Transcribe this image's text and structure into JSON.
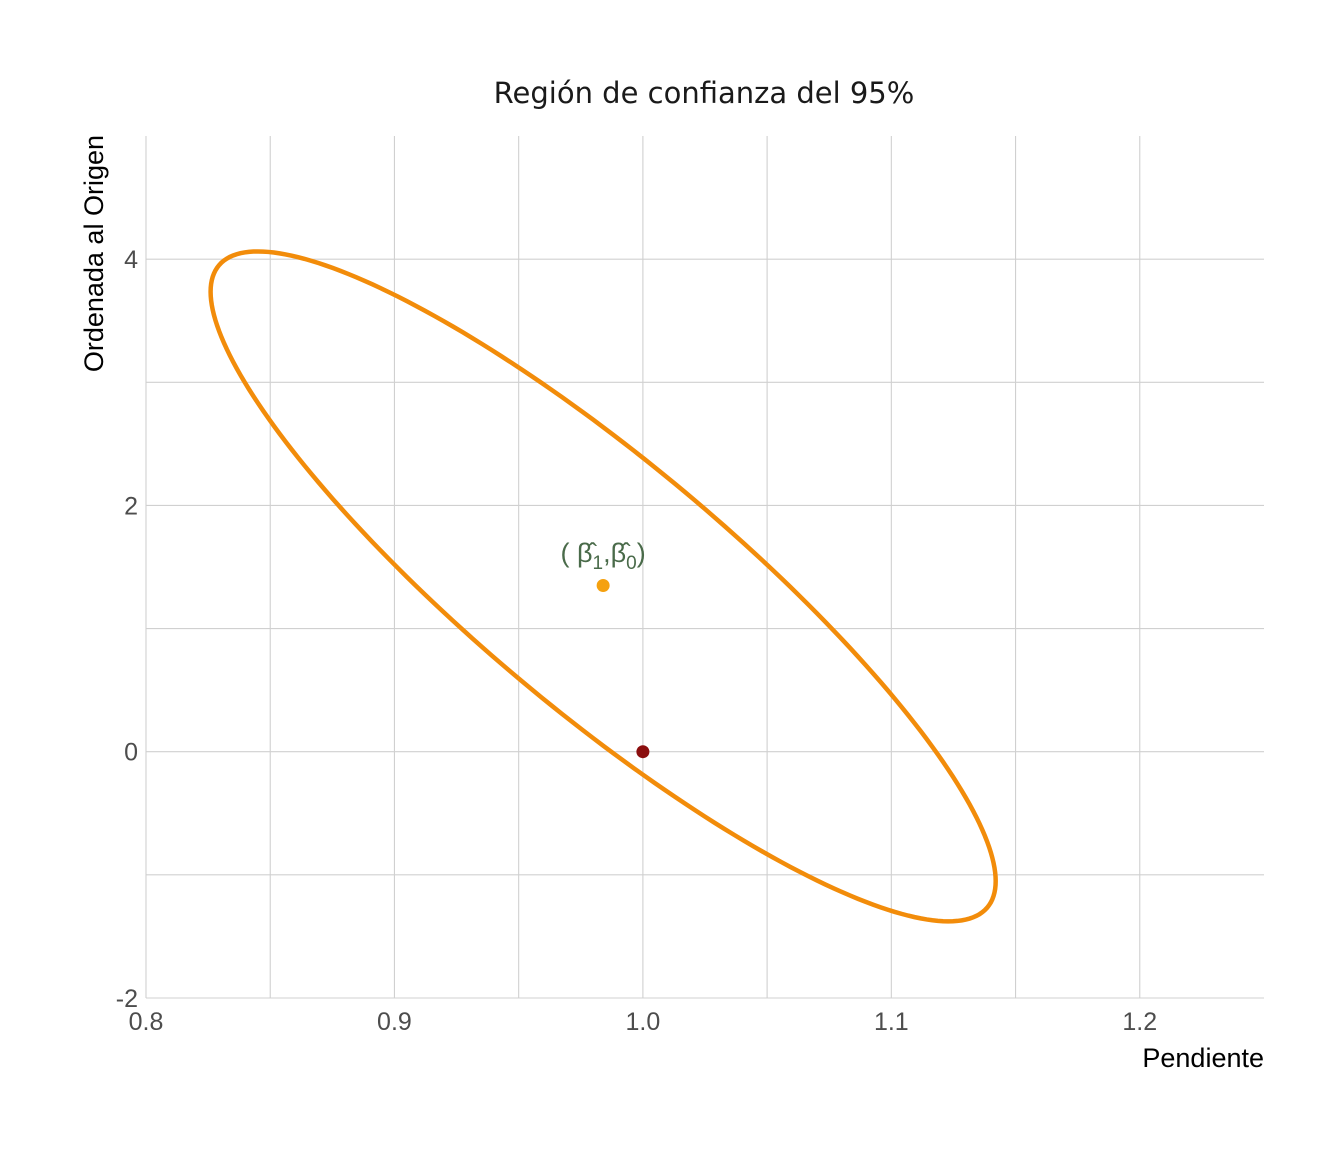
{
  "chart_data": {
    "type": "scatter",
    "title": "Región de confianza del 95%",
    "xlabel": "Pendiente",
    "ylabel": "Ordenada al Origen",
    "xlim": [
      0.8,
      1.25
    ],
    "ylim": [
      -2,
      5
    ],
    "x_ticks": [
      0.8,
      0.9,
      1.0,
      1.1,
      1.2
    ],
    "x_tick_labels": [
      "0.8",
      "0.9",
      "1.0",
      "1.1",
      "1.2"
    ],
    "y_ticks": [
      -2,
      0,
      2,
      4
    ],
    "y_tick_labels": [
      "-2",
      "0",
      "2",
      "4"
    ],
    "x_minor_gridlines": [
      0.85,
      0.95,
      1.05,
      1.15
    ],
    "y_minor_gridlines": [
      -1,
      1,
      3
    ],
    "grid": true,
    "ellipse": {
      "color": "#f28c0a",
      "max_y_point": [
        0.845,
        4.07
      ],
      "min_y_point": [
        1.123,
        -1.37
      ],
      "min_x_point": [
        0.826,
        3.72
      ],
      "max_x_point": [
        1.142,
        -1.05
      ]
    },
    "points": [
      {
        "x": 0.984,
        "y": 1.35,
        "color": "#f5a10f"
      },
      {
        "x": 1.0,
        "y": 0.0,
        "color": "#8b0e0e"
      }
    ],
    "annotation": {
      "x": 0.984,
      "y": 1.58,
      "text_parts": [
        "( ",
        "β̂",
        "1",
        ",",
        "β̂",
        "0",
        ")"
      ]
    },
    "colors": {
      "ellipse": "#f28c0a",
      "estimate_point": "#f5a10f",
      "true_point": "#8b0e0e",
      "annotation": "#4a6b4a",
      "grid": "#d0d0d0"
    }
  }
}
